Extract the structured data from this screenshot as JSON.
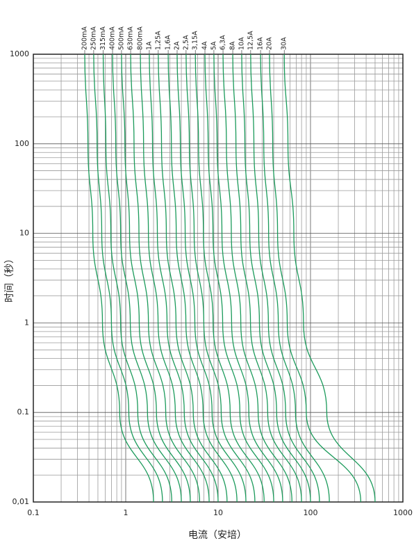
{
  "chart_data": {
    "type": "line",
    "x_label": "电流（安培）",
    "y_label": "时间（秒）",
    "xscale": "log",
    "yscale": "log",
    "grid": true,
    "color": "#1a9a5a",
    "xlim": [
      0.1,
      1000
    ],
    "ylim": [
      0.01,
      1000
    ],
    "xticks": [
      0.1,
      1,
      10,
      100,
      1000
    ],
    "yticks": [
      {
        "value": 0.01,
        "label": "0,01"
      },
      0.1,
      1,
      10,
      100,
      1000
    ],
    "y": [
      1000,
      100,
      10,
      1,
      0.1,
      0.01
    ],
    "series": [
      {
        "name": "200mA",
        "x": [
          0.36,
          0.39,
          0.44,
          0.56,
          0.86,
          2
        ]
      },
      {
        "name": "250mA",
        "x": [
          0.45,
          0.49,
          0.55,
          0.7,
          1.08,
          2.5
        ]
      },
      {
        "name": "315mA",
        "x": [
          0.57,
          0.61,
          0.69,
          0.88,
          1.35,
          3.15
        ]
      },
      {
        "name": "400mA",
        "x": [
          0.72,
          0.78,
          0.88,
          1.12,
          1.72,
          4
        ]
      },
      {
        "name": "500mA",
        "x": [
          0.9,
          0.98,
          1.1,
          1.4,
          2.15,
          5
        ]
      },
      {
        "name": "630mA",
        "x": [
          1.13,
          1.23,
          1.39,
          1.76,
          2.71,
          6.3
        ]
      },
      {
        "name": "800mA",
        "x": [
          1.44,
          1.56,
          1.76,
          2.24,
          3.44,
          8
        ]
      },
      {
        "name": "1A",
        "x": [
          1.8,
          1.95,
          2.2,
          2.8,
          4.3,
          10
        ]
      },
      {
        "name": "1,25A",
        "x": [
          2.25,
          2.44,
          2.75,
          3.5,
          5.38,
          12.5
        ]
      },
      {
        "name": "1,6A",
        "x": [
          2.88,
          3.12,
          3.52,
          4.48,
          6.88,
          16
        ]
      },
      {
        "name": "2A",
        "x": [
          3.6,
          3.9,
          4.4,
          5.6,
          8.6,
          20
        ]
      },
      {
        "name": "2,5A",
        "x": [
          4.5,
          4.88,
          5.5,
          7,
          10.8,
          25
        ]
      },
      {
        "name": "3,15A",
        "x": [
          5.67,
          6.14,
          6.93,
          8.82,
          13.5,
          31.5
        ]
      },
      {
        "name": "4A",
        "x": [
          7.2,
          7.8,
          8.8,
          11.2,
          17.2,
          40
        ]
      },
      {
        "name": "5A",
        "x": [
          9,
          9.75,
          11,
          14,
          21.5,
          50
        ]
      },
      {
        "name": "6,3A",
        "x": [
          11.3,
          12.3,
          13.9,
          17.6,
          27.1,
          63
        ]
      },
      {
        "name": "8A",
        "x": [
          14.4,
          15.6,
          17.6,
          22.4,
          34.4,
          80
        ]
      },
      {
        "name": "10A",
        "x": [
          18,
          19.5,
          22,
          28,
          43,
          100
        ]
      },
      {
        "name": "12,5A",
        "x": [
          22.5,
          24.4,
          27.5,
          35,
          53.8,
          125
        ]
      },
      {
        "name": "16A",
        "x": [
          28.8,
          31.2,
          35.2,
          44.8,
          68.8,
          160
        ]
      },
      {
        "name": "20A",
        "x": [
          36,
          39,
          44,
          56,
          90,
          350
        ]
      },
      {
        "name": "30A",
        "x": [
          52,
          57,
          66,
          84,
          150,
          500
        ]
      }
    ]
  }
}
